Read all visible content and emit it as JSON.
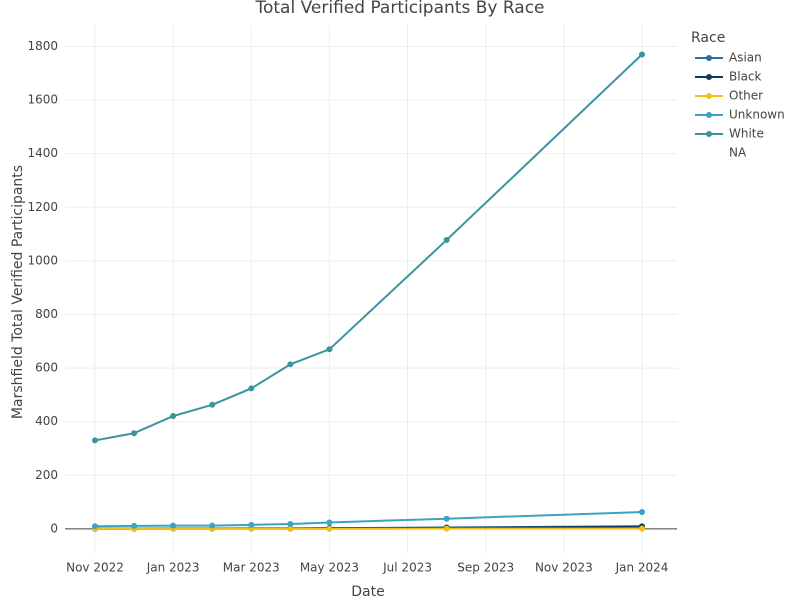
{
  "chart_data": {
    "type": "line",
    "title": "Total Verified Participants By Race",
    "x_label": "Date",
    "y_label": "Marshfield Total Verified Participants",
    "legend_title": "Race",
    "x": [
      "2022-11",
      "2022-12",
      "2023-01",
      "2023-02",
      "2023-03",
      "2023-04",
      "2023-05",
      "2023-08",
      "2024-01"
    ],
    "series": [
      {
        "name": "Asian",
        "color": "#2a6fa3",
        "values": [
          1,
          1,
          1,
          1,
          2,
          2,
          3,
          5,
          10
        ]
      },
      {
        "name": "Black",
        "color": "#0e3a62",
        "values": [
          0,
          0,
          1,
          1,
          1,
          1,
          2,
          4,
          8
        ]
      },
      {
        "name": "Other",
        "color": "#f3c018",
        "values": [
          0,
          0,
          0,
          0,
          0,
          0,
          0,
          1,
          1
        ]
      },
      {
        "name": "Unknown",
        "color": "#3ba3c4",
        "values": [
          10,
          11,
          12,
          12,
          15,
          18,
          24,
          38,
          63
        ]
      },
      {
        "name": "White",
        "color": "#3a949e",
        "values": [
          330,
          357,
          421,
          463,
          524,
          614,
          670,
          1078,
          1770
        ]
      },
      {
        "name": "NA",
        "values": [
          null,
          null,
          null,
          null,
          null,
          null,
          null,
          null,
          null
        ]
      }
    ],
    "xticks": [
      {
        "value": "2022-11",
        "label": "Nov 2022"
      },
      {
        "value": "2023-01",
        "label": "Jan 2023"
      },
      {
        "value": "2023-03",
        "label": "Mar 2023"
      },
      {
        "value": "2023-05",
        "label": "May 2023"
      },
      {
        "value": "2023-07",
        "label": "Jul 2023"
      },
      {
        "value": "2023-09",
        "label": "Sep 2023"
      },
      {
        "value": "2023-11",
        "label": "Nov 2023"
      },
      {
        "value": "2024-01",
        "label": "Jan 2024"
      }
    ],
    "ylim": [
      -90,
      1880
    ],
    "yticks": [
      0,
      200,
      400,
      600,
      800,
      1000,
      1200,
      1400,
      1600,
      1800
    ],
    "grid": true
  }
}
